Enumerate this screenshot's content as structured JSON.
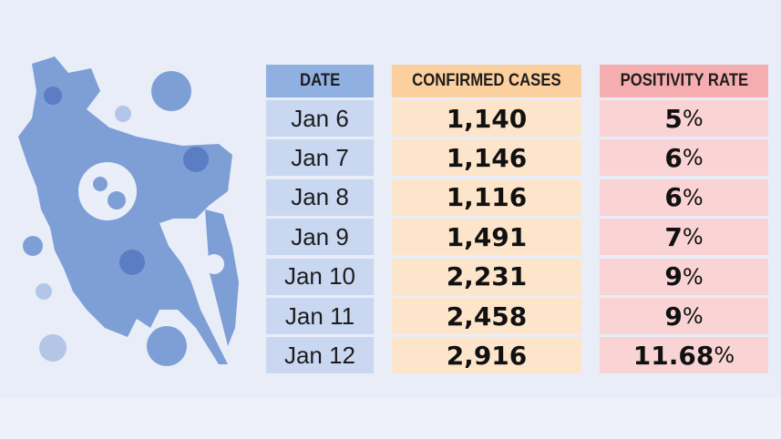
{
  "table": {
    "headers": [
      "DATE",
      "CONFIRMED CASES",
      "POSITIVITY RATE"
    ],
    "rows": [
      {
        "date": "Jan 6",
        "cases": "1,140",
        "rate": "5",
        "rate_unit": "%"
      },
      {
        "date": "Jan 7",
        "cases": "1,146",
        "rate": "6",
        "rate_unit": "%"
      },
      {
        "date": "Jan 8",
        "cases": "1,116",
        "rate": "6",
        "rate_unit": "%"
      },
      {
        "date": "Jan 9",
        "cases": "1,491",
        "rate": "7",
        "rate_unit": "%"
      },
      {
        "date": "Jan 10",
        "cases": "2,231",
        "rate": "9",
        "rate_unit": "%"
      },
      {
        "date": "Jan 11",
        "cases": "2,458",
        "rate": "9",
        "rate_unit": "%"
      },
      {
        "date": "Jan 12",
        "cases": "2,916",
        "rate": "11.68",
        "rate_unit": "%"
      }
    ]
  }
}
